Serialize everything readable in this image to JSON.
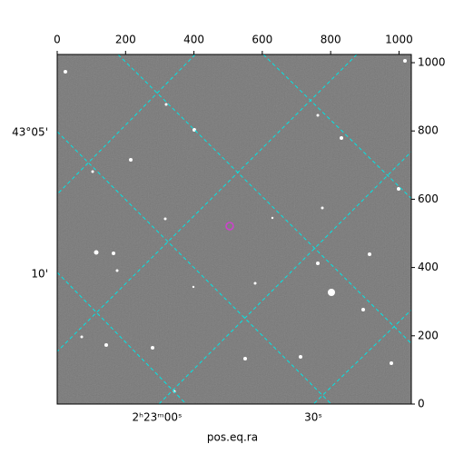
{
  "chart_data": {
    "type": "image",
    "xlabel": "pos.eq.ra",
    "xlim": [
      0,
      1036
    ],
    "ylim": [
      0,
      1024
    ],
    "xticks": [
      0,
      200,
      400,
      600,
      800,
      1000
    ],
    "yticks": [
      0,
      200,
      400,
      600,
      800,
      1000
    ],
    "ra_labels": [
      "2ʰ23ᵐ00ˢ",
      "30ˢ"
    ],
    "dec_labels": [
      "43°05'",
      "10'"
    ]
  }
}
